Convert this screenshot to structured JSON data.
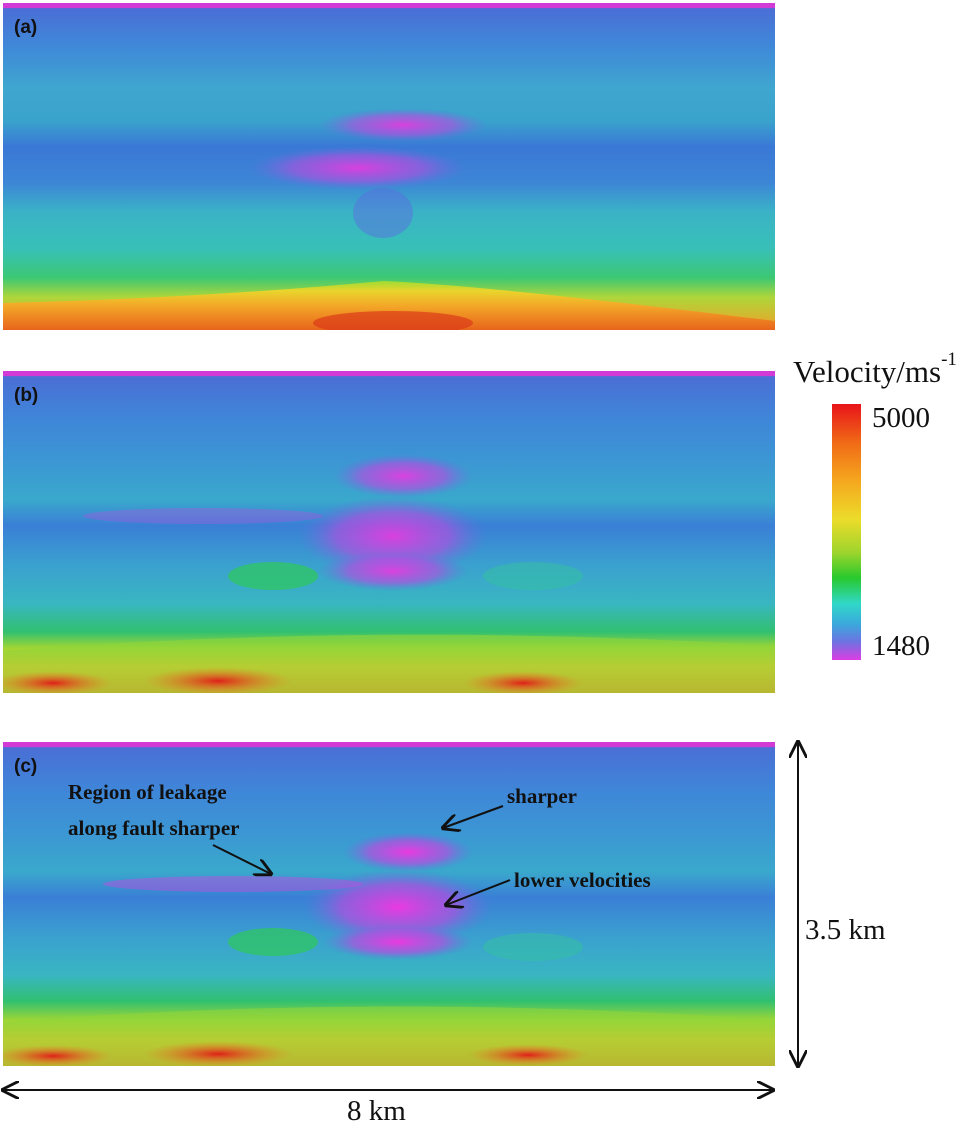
{
  "panels": {
    "a": {
      "label": "(a)"
    },
    "b": {
      "label": "(b)"
    },
    "c": {
      "label": "(c)"
    }
  },
  "annotations": {
    "leakage_line1": "Region of leakage",
    "leakage_line2": "along fault sharper",
    "sharper": "sharper",
    "lower_velocities": "lower velocities"
  },
  "colorbar": {
    "title": "Velocity/ms",
    "title_superscript": "-1",
    "max_label": "5000",
    "min_label": "1480",
    "max_value": 5000,
    "min_value": 1480,
    "colors": [
      "#e8141a",
      "#f06a16",
      "#f5a71e",
      "#ecdc2a",
      "#9ed42c",
      "#27c92d",
      "#31d8c8",
      "#3aa8dc",
      "#6f72e2",
      "#dc3de2"
    ]
  },
  "dimensions": {
    "depth_label": "3.5 km",
    "width_label": "8 km"
  }
}
